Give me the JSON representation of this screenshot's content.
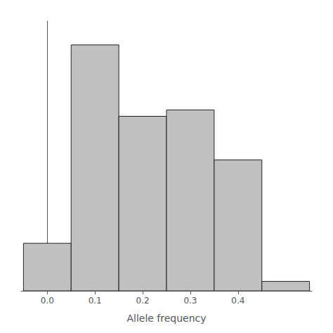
{
  "chart_data": {
    "type": "histogram",
    "xlabel": "Allele frequency",
    "bins": [
      -0.05,
      0.05,
      0.15,
      0.25,
      0.35,
      0.45,
      0.55
    ],
    "counts": [
      60,
      310,
      220,
      228,
      165,
      12
    ],
    "color": "#c0c0c0",
    "xlim": [
      -0.055,
      0.555
    ],
    "xticks": [
      {
        "value": 0.0,
        "label": "0.0"
      },
      0.1,
      0.2,
      0.3,
      0.4
    ],
    "ylim": [
      0,
      340
    ],
    "yticks": [],
    "grid": false,
    "tick_labels": "x"
  }
}
